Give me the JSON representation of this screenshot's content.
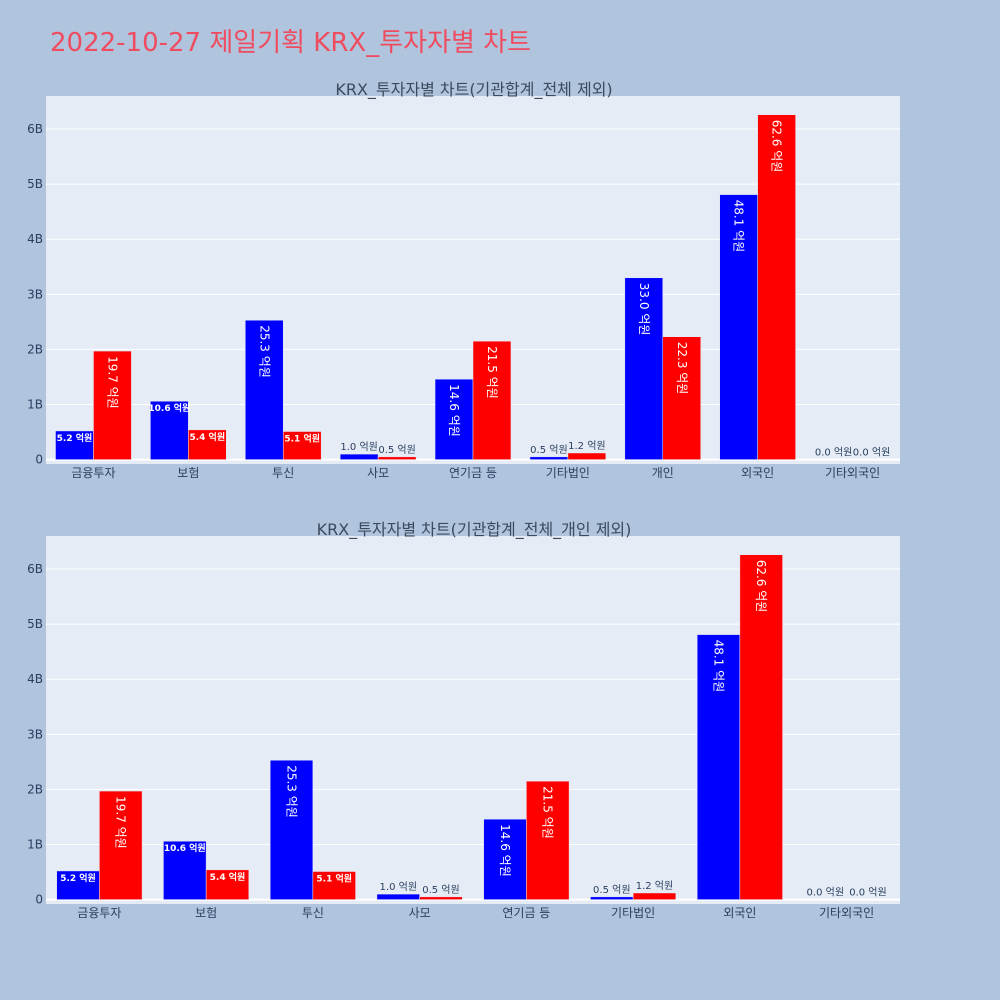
{
  "page": {
    "title": "2022-10-27 제일기획 KRX_투자자별 차트",
    "title_color": "#ef4c5f",
    "background": "#b0c4de",
    "plot_background": "#e5ecf6"
  },
  "chart_data": [
    {
      "type": "bar",
      "title": "KRX_투자자별 차트(기관합계_전체 제외)",
      "categories": [
        "금융투자",
        "보험",
        "투신",
        "사모",
        "연기금 등",
        "기타법인",
        "개인",
        "외국인",
        "기타외국인"
      ],
      "series": [
        {
          "color": "#0000ff",
          "values": [
            520000000,
            1060000000,
            2530000000,
            100000000,
            1460000000,
            50000000,
            3300000000,
            4810000000,
            0
          ],
          "labels": [
            "5.2 억원",
            "10.6 억원",
            "25.3 억원",
            "1.0 억원",
            "14.6 억원",
            "0.5 억원",
            "33.0 억원",
            "48.1 억원",
            "0.0 억원"
          ]
        },
        {
          "color": "#ff0000",
          "values": [
            1970000000,
            540000000,
            510000000,
            50000000,
            2150000000,
            120000000,
            2230000000,
            6260000000,
            0
          ],
          "labels": [
            "19.7 억원",
            "5.4 억원",
            "5.1 억원",
            "0.5 억원",
            "21.5 억원",
            "1.2 억원",
            "22.3 억원",
            "62.6 억원",
            "0.0 억원"
          ]
        }
      ],
      "y_ticks": [
        {
          "value": 0,
          "label": "0"
        },
        {
          "value": 1000000000,
          "label": "1B"
        },
        {
          "value": 2000000000,
          "label": "2B"
        },
        {
          "value": 3000000000,
          "label": "3B"
        },
        {
          "value": 4000000000,
          "label": "4B"
        },
        {
          "value": 5000000000,
          "label": "5B"
        },
        {
          "value": 6000000000,
          "label": "6B"
        }
      ],
      "ylim": [
        -80000000,
        6600000000
      ],
      "grid": true,
      "legend": "none"
    },
    {
      "type": "bar",
      "title": "KRX_투자자별 차트(기관합계_전체_개인 제외)",
      "categories": [
        "금융투자",
        "보험",
        "투신",
        "사모",
        "연기금 등",
        "기타법인",
        "외국인",
        "기타외국인"
      ],
      "series": [
        {
          "color": "#0000ff",
          "values": [
            520000000,
            1060000000,
            2530000000,
            100000000,
            1460000000,
            50000000,
            4810000000,
            0
          ],
          "labels": [
            "5.2 억원",
            "10.6 억원",
            "25.3 억원",
            "1.0 억원",
            "14.6 억원",
            "0.5 억원",
            "48.1 억원",
            "0.0 억원"
          ]
        },
        {
          "color": "#ff0000",
          "values": [
            1970000000,
            540000000,
            510000000,
            50000000,
            2150000000,
            120000000,
            6260000000,
            0
          ],
          "labels": [
            "19.7 억원",
            "5.4 억원",
            "5.1 억원",
            "0.5 억원",
            "21.5 억원",
            "1.2 억원",
            "62.6 억원",
            "0.0 억원"
          ]
        }
      ],
      "y_ticks": [
        {
          "value": 0,
          "label": "0"
        },
        {
          "value": 1000000000,
          "label": "1B"
        },
        {
          "value": 2000000000,
          "label": "2B"
        },
        {
          "value": 3000000000,
          "label": "3B"
        },
        {
          "value": 4000000000,
          "label": "4B"
        },
        {
          "value": 5000000000,
          "label": "5B"
        },
        {
          "value": 6000000000,
          "label": "6B"
        }
      ],
      "ylim": [
        -80000000,
        6600000000
      ],
      "grid": true,
      "legend": "none"
    }
  ]
}
